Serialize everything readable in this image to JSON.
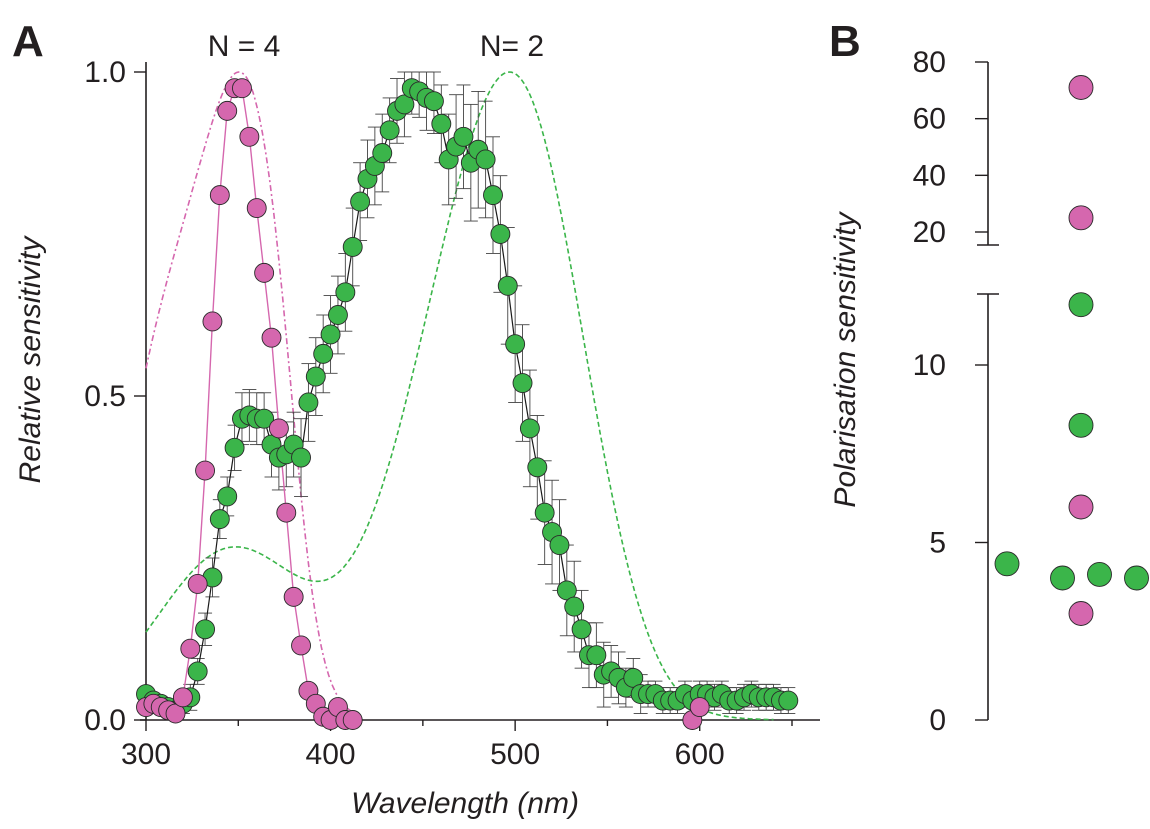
{
  "colors": {
    "uv": "#d567ae",
    "green": "#3bb54a",
    "axis": "#231f20"
  },
  "chart_data": [
    {
      "panel": "A",
      "type": "line",
      "xlabel": "Wavelength (nm)",
      "ylabel": "Relative sensitivity",
      "xlim": [
        300,
        650
      ],
      "ylim": [
        0,
        1.0
      ],
      "xticks": [
        "300",
        "400",
        "500",
        "600"
      ],
      "yticks": [
        "0.0",
        "0.5",
        "1.0"
      ],
      "annotations": [
        "N = 4",
        "N= 2"
      ],
      "series": [
        {
          "marker": "circle",
          "color": "#d567ae",
          "x": [
            300,
            304,
            308,
            312,
            316,
            320,
            324,
            328,
            332,
            336,
            340,
            344,
            348,
            352,
            356,
            360,
            364,
            368,
            372,
            376,
            380,
            384,
            388,
            392,
            396,
            400,
            404,
            408,
            412,
            596,
            600
          ],
          "y": [
            0.02,
            0.025,
            0.02,
            0.015,
            0.01,
            0.035,
            0.11,
            0.21,
            0.385,
            0.615,
            0.81,
            0.94,
            0.975,
            0.975,
            0.9,
            0.79,
            0.69,
            0.59,
            0.45,
            0.32,
            0.19,
            0.115,
            0.045,
            0.025,
            0.005,
            0.0,
            0.02,
            0.0,
            0.0,
            0.0,
            0.02
          ]
        },
        {
          "marker": "circle",
          "color": "#3bb54a",
          "x": [
            300,
            304,
            308,
            312,
            316,
            320,
            324,
            328,
            332,
            336,
            340,
            344,
            348,
            352,
            356,
            360,
            364,
            368,
            372,
            376,
            380,
            384,
            388,
            392,
            396,
            400,
            404,
            408,
            412,
            416,
            420,
            424,
            428,
            432,
            436,
            440,
            444,
            448,
            452,
            456,
            460,
            464,
            468,
            472,
            476,
            480,
            484,
            488,
            492,
            496,
            500,
            504,
            508,
            512,
            516,
            520,
            524,
            528,
            532,
            536,
            540,
            544,
            548,
            552,
            556,
            560,
            564,
            568,
            572,
            576,
            580,
            584,
            588,
            592,
            596,
            600,
            604,
            608,
            612,
            616,
            620,
            624,
            628,
            632,
            636,
            640,
            644,
            648
          ],
          "y": [
            0.04,
            0.03,
            0.025,
            0.02,
            0.015,
            0.025,
            0.035,
            0.075,
            0.14,
            0.22,
            0.31,
            0.345,
            0.42,
            0.465,
            0.47,
            0.465,
            0.465,
            0.425,
            0.405,
            0.41,
            0.425,
            0.405,
            0.49,
            0.53,
            0.565,
            0.595,
            0.625,
            0.66,
            0.73,
            0.8,
            0.835,
            0.855,
            0.875,
            0.91,
            0.94,
            0.95,
            0.975,
            0.97,
            0.96,
            0.955,
            0.92,
            0.865,
            0.885,
            0.9,
            0.86,
            0.88,
            0.865,
            0.81,
            0.75,
            0.67,
            0.58,
            0.52,
            0.45,
            0.39,
            0.32,
            0.29,
            0.27,
            0.2,
            0.175,
            0.14,
            0.1,
            0.1,
            0.07,
            0.075,
            0.065,
            0.05,
            0.065,
            0.04,
            0.04,
            0.04,
            0.03,
            0.03,
            0.03,
            0.04,
            0.03,
            0.04,
            0.04,
            0.035,
            0.04,
            0.03,
            0.03,
            0.035,
            0.04,
            0.035,
            0.035,
            0.035,
            0.03,
            0.03
          ],
          "err": [
            0.01,
            0.01,
            0.01,
            0.01,
            0.01,
            0.015,
            0.02,
            0.02,
            0.025,
            0.03,
            0.03,
            0.03,
            0.035,
            0.04,
            0.04,
            0.04,
            0.04,
            0.05,
            0.05,
            0.05,
            0.05,
            0.06,
            0.06,
            0.06,
            0.06,
            0.06,
            0.06,
            0.06,
            0.06,
            0.06,
            0.06,
            0.06,
            0.06,
            0.05,
            0.05,
            0.05,
            0.04,
            0.04,
            0.05,
            0.05,
            0.06,
            0.07,
            0.08,
            0.08,
            0.09,
            0.09,
            0.09,
            0.09,
            0.09,
            0.09,
            0.09,
            0.09,
            0.09,
            0.08,
            0.08,
            0.08,
            0.07,
            0.07,
            0.07,
            0.06,
            0.05,
            0.05,
            0.05,
            0.04,
            0.04,
            0.03,
            0.03,
            0.03,
            0.02,
            0.02,
            0.02,
            0.02,
            0.02,
            0.02,
            0.02,
            0.02,
            0.02,
            0.02,
            0.02,
            0.02,
            0.02,
            0.02,
            0.02,
            0.02,
            0.02,
            0.02,
            0.02,
            0.02
          ]
        }
      ]
    },
    {
      "panel": "B",
      "type": "scatter",
      "ylabel": "Polarisation sensitivity",
      "yticks_lower": [
        "0",
        "5",
        "10"
      ],
      "yticks_upper": [
        "20",
        "40",
        "60",
        "80"
      ],
      "axis_break": true,
      "points": [
        {
          "value": 71,
          "color": "#d567ae",
          "column": 0
        },
        {
          "value": 25,
          "color": "#d567ae",
          "column": 0
        },
        {
          "value": 11.7,
          "color": "#3bb54a",
          "column": 0
        },
        {
          "value": 8.3,
          "color": "#3bb54a",
          "column": 0
        },
        {
          "value": 6.0,
          "color": "#d567ae",
          "column": 0
        },
        {
          "value": 4.4,
          "color": "#3bb54a",
          "column": -2
        },
        {
          "value": 4.0,
          "color": "#3bb54a",
          "column": -0.5
        },
        {
          "value": 4.1,
          "color": "#3bb54a",
          "column": 0.5
        },
        {
          "value": 4.0,
          "color": "#3bb54a",
          "column": 1.5
        },
        {
          "value": 3.0,
          "color": "#d567ae",
          "column": 0
        }
      ]
    }
  ]
}
